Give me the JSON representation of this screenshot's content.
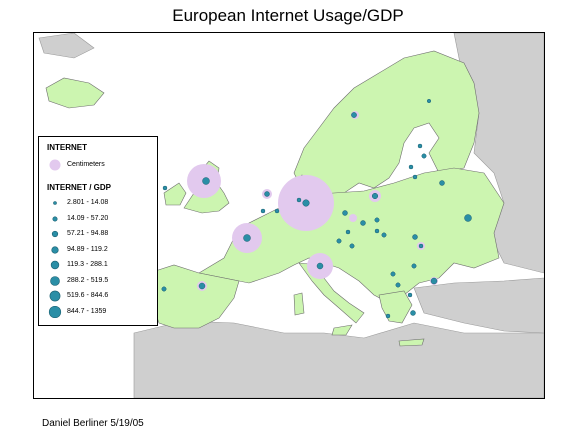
{
  "title": "European Internet Usage/GDP",
  "footer": "Daniel Berliner  5/19/05",
  "colors": {
    "land_europe": "#ccf5b0",
    "land_other": "#cfcfcf",
    "borders": "#6e6e6e",
    "internet_circle": "#e2c9ee",
    "ratio_dot": "#2a8ea6",
    "ratio_dot_stroke": "#1a5f70"
  },
  "legend": {
    "internet_title": "INTERNET",
    "internet_item": "Centimeters",
    "ratio_title": "INTERNET / GDP",
    "classes": [
      {
        "label": "2.801 - 14.08"
      },
      {
        "label": "14.09 - 57.20"
      },
      {
        "label": "57.21 - 94.88"
      },
      {
        "label": "94.89 - 119.2"
      },
      {
        "label": "119.3 - 288.1"
      },
      {
        "label": "288.2 - 519.5"
      },
      {
        "label": "519.6 - 844.6"
      },
      {
        "label": "844.7 - 1359"
      }
    ]
  },
  "map_layers": {
    "internet_symbol": "light-purple proportional circle",
    "ratio_symbol": "graduated teal dot",
    "countries_shown": [
      "United Kingdom",
      "Ireland",
      "France",
      "Spain",
      "Portugal",
      "Germany",
      "Italy",
      "Poland",
      "Sweden",
      "Norway",
      "Finland",
      "Netherlands",
      "Belgium",
      "Switzerland",
      "Austria",
      "Czech Republic",
      "Hungary",
      "Romania",
      "Bulgaria",
      "Greece",
      "Ukraine",
      "Belarus",
      "Estonia",
      "Latvia",
      "Lithuania",
      "Denmark",
      "Iceland",
      "Serbia",
      "Croatia",
      "Slovakia",
      "Slovenia"
    ]
  }
}
